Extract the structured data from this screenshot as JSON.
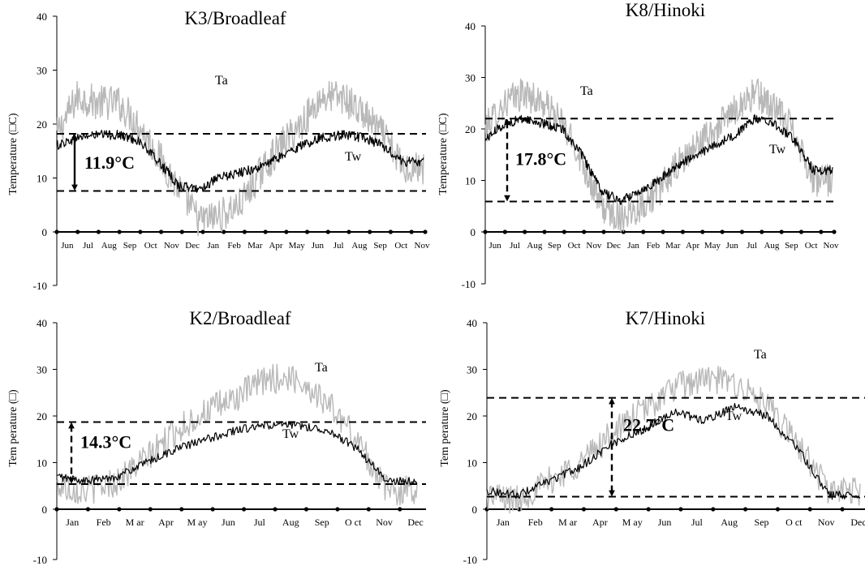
{
  "chart_data": [
    {
      "type": "line",
      "title": "K3/Broadleaf",
      "ylabel": "Temperature (□C)",
      "ylim": [
        -10,
        40
      ],
      "yticks": [
        -10,
        0,
        10,
        20,
        30,
        40
      ],
      "xticks": [
        "Jun",
        "Jul",
        "Aug",
        "Sep",
        "Oct",
        "Nov",
        "Dec",
        "Jan",
        "Feb",
        "Mar",
        "Apr",
        "May",
        "Jun",
        "Jul",
        "Aug",
        "Sep",
        "Oct",
        "Nov"
      ],
      "grid": false,
      "series": [
        {
          "name": "Ta",
          "color": "#b8b8b8",
          "values": [
            18,
            25,
            24,
            24,
            20,
            14,
            8,
            2,
            3,
            5,
            11,
            16,
            20,
            25,
            25,
            22,
            18,
            12
          ]
        },
        {
          "name": "Tw",
          "color": "#000000",
          "values": [
            16,
            17.5,
            18,
            18,
            17,
            13,
            8.5,
            8,
            10,
            11,
            12,
            14,
            16,
            17.5,
            18,
            17.5,
            16,
            13
          ]
        }
      ],
      "reference_lines": [
        18.2,
        7.6
      ],
      "annotation": "11.9°C"
    },
    {
      "type": "line",
      "title": "K8/Hinoki",
      "ylabel": "Temperature (□C)",
      "ylim": [
        -10,
        40
      ],
      "yticks": [
        -10,
        0,
        10,
        20,
        30,
        40
      ],
      "xticks": [
        "Jun",
        "Jul",
        "Aug",
        "Sep",
        "Oct",
        "Nov",
        "Dec",
        "Jan",
        "Feb",
        "Mar",
        "Apr",
        "May",
        "Jun",
        "Jul",
        "Aug",
        "Sep",
        "Oct",
        "Nov"
      ],
      "grid": false,
      "series": [
        {
          "name": "Ta",
          "color": "#b8b8b8",
          "values": [
            20,
            25,
            27,
            25,
            21,
            14,
            5,
            3,
            5,
            8,
            13,
            17,
            20,
            24,
            27,
            24,
            20,
            10
          ]
        },
        {
          "name": "Tw",
          "color": "#000000",
          "values": [
            18,
            21,
            22,
            21,
            20,
            15,
            8,
            6,
            8,
            10,
            13,
            15,
            17,
            19,
            22,
            21,
            18,
            12
          ]
        }
      ],
      "reference_lines": [
        22,
        5.9
      ],
      "annotation": "17.8°C"
    },
    {
      "type": "line",
      "title": "K2/Broadleaf",
      "ylabel": "Tem perature (□)",
      "ylim": [
        -10,
        40
      ],
      "yticks": [
        -10,
        0,
        10,
        20,
        30,
        40
      ],
      "xticks": [
        "Jan",
        "Feb",
        "M ar",
        "Apr",
        "M ay",
        "Jun",
        "Jul",
        "Aug",
        "Sep",
        "O ct",
        "Nov",
        "Dec"
      ],
      "grid": false,
      "series": [
        {
          "name": "Ta",
          "color": "#b8b8b8",
          "values": [
            5,
            4,
            6,
            11,
            17,
            21,
            24,
            28,
            28,
            23,
            15,
            4
          ]
        },
        {
          "name": "Tw",
          "color": "#000000",
          "values": [
            7,
            6,
            7,
            10,
            13,
            15,
            17,
            18,
            18,
            17,
            13,
            6
          ]
        }
      ],
      "reference_lines": [
        18.7,
        5.4
      ],
      "annotation": "14.3°C"
    },
    {
      "type": "line",
      "title": "K7/Hinoki",
      "ylabel": "Tem perature (□)",
      "ylim": [
        -10,
        40
      ],
      "yticks": [
        -10,
        0,
        10,
        20,
        30,
        40
      ],
      "xticks": [
        "Jan",
        "Feb",
        "M ar",
        "Apr",
        "M ay",
        "Jun",
        "Jul",
        "Aug",
        "Sep",
        "O ct",
        "Nov",
        "Dec"
      ],
      "grid": false,
      "series": [
        {
          "name": "Ta",
          "color": "#b8b8b8",
          "values": [
            3,
            2,
            6,
            10,
            16,
            21,
            26,
            28,
            27,
            22,
            14,
            4
          ]
        },
        {
          "name": "Tw",
          "color": "#000000",
          "values": [
            4,
            3,
            6,
            9,
            14,
            17,
            21,
            19,
            22,
            20,
            13,
            3
          ]
        }
      ],
      "reference_lines": [
        23.9,
        2.7
      ],
      "annotation": "22.7°C"
    }
  ]
}
